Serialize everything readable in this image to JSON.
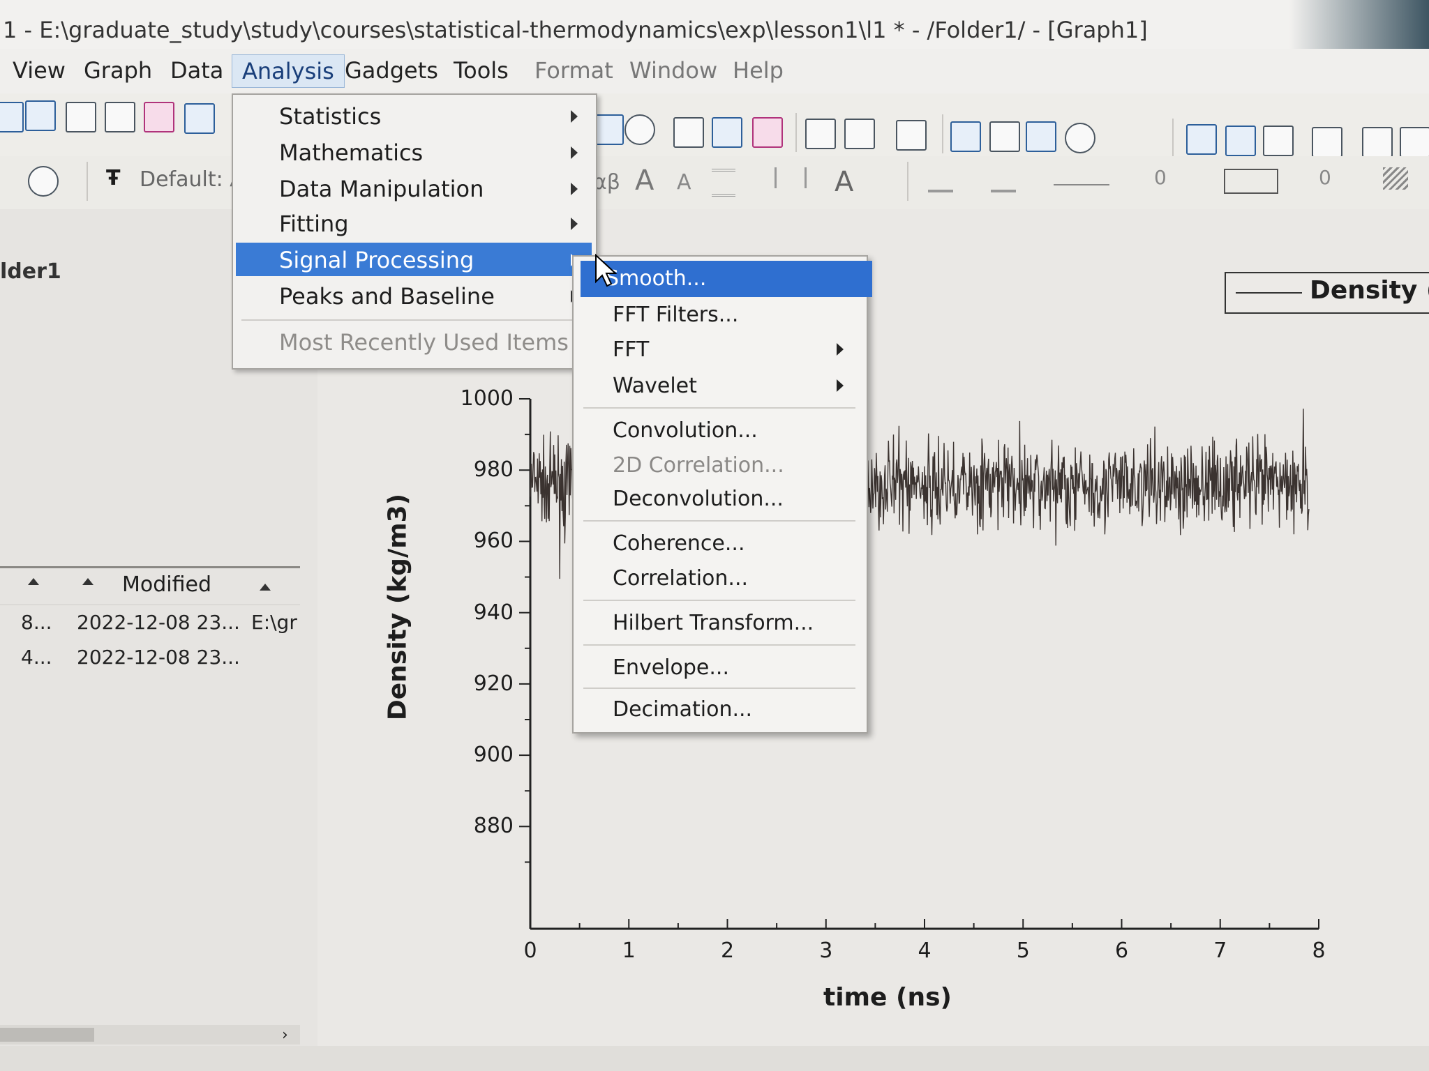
{
  "window": {
    "title": "1 - E:\\graduate_study\\study\\courses\\statistical-thermodynamics\\exp\\lesson1\\l1 * - /Folder1/ - [Graph1]"
  },
  "menubar": {
    "items": [
      "View",
      "Graph",
      "Data",
      "Analysis",
      "Gadgets",
      "Tools",
      "Format",
      "Window",
      "Help"
    ],
    "active": "Analysis"
  },
  "toolbar2": {
    "font_combo": "Default: A",
    "greek": "αβ",
    "spin_values": [
      "0",
      "0"
    ]
  },
  "left_panel": {
    "folder_label": "lder1",
    "columns": [
      "Modified"
    ],
    "rows": [
      {
        "name": "8...",
        "modified": "2022-12-08 23...",
        "path": "E:\\gr"
      },
      {
        "name": "4...",
        "modified": "2022-12-08 23...",
        "path": ""
      }
    ]
  },
  "analysis_menu": {
    "items": [
      {
        "label": "Statistics",
        "submenu": true
      },
      {
        "label": "Mathematics",
        "submenu": true
      },
      {
        "label": "Data Manipulation",
        "submenu": true
      },
      {
        "label": "Fitting",
        "submenu": true
      },
      {
        "label": "Signal Processing",
        "submenu": true,
        "highlighted": true
      },
      {
        "label": "Peaks and Baseline",
        "submenu": true
      },
      {
        "label": "Most Recently Used Items",
        "submenu": false,
        "disabled": true
      }
    ]
  },
  "signal_processing_menu": {
    "items": [
      {
        "label": "Smooth...",
        "highlighted": true
      },
      {
        "label": "FFT Filters..."
      },
      {
        "label": "FFT",
        "submenu": true
      },
      {
        "label": "Wavelet",
        "submenu": true
      },
      {
        "label": "Convolution..."
      },
      {
        "label": "2D Correlation...",
        "disabled": true
      },
      {
        "label": "Deconvolution..."
      },
      {
        "label": "Coherence..."
      },
      {
        "label": "Correlation..."
      },
      {
        "label": "Hilbert Transform..."
      },
      {
        "label": "Envelope..."
      },
      {
        "label": "Decimation..."
      }
    ]
  },
  "chart_data": {
    "type": "line",
    "title": "",
    "xlabel": "time (ns)",
    "ylabel": "Density (kg/m3)",
    "xlim": [
      0,
      8
    ],
    "ylim": [
      865,
      1000
    ],
    "xticks": [
      "0",
      "1",
      "2",
      "3",
      "4",
      "5",
      "6",
      "7",
      "8"
    ],
    "yticks": [
      "1000",
      "980",
      "960",
      "940",
      "920",
      "900",
      "880"
    ],
    "series": [
      {
        "name": "Density (k",
        "color": "#3b3330",
        "mean": 976,
        "spread": 12,
        "x_range": [
          0,
          7.9
        ]
      }
    ],
    "legend": "top-right"
  },
  "colors": {
    "menu_highlight": "#3a7bd5",
    "series": "#3b3330"
  }
}
